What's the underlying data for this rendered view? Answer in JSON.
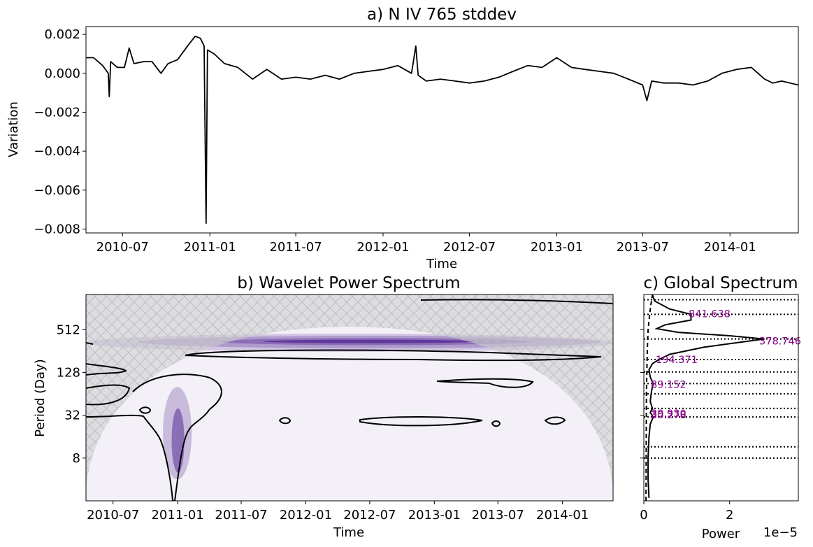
{
  "chart_data": [
    {
      "panel": "a",
      "type": "line",
      "title": "a) N IV 765 stddev",
      "xlabel": "Time",
      "ylabel": "Variation",
      "x_range": [
        "2010-04-15",
        "2014-05-25"
      ],
      "ylim": [
        -0.0082,
        0.0024
      ],
      "xticks": [
        "2010-07",
        "2011-01",
        "2011-07",
        "2012-01",
        "2012-07",
        "2013-01",
        "2013-07",
        "2014-01"
      ],
      "yticks": [
        {
          "value": 0.002,
          "label": "0.002"
        },
        {
          "value": 0.0,
          "label": "0.000"
        },
        {
          "value": -0.002,
          "label": "−0.002"
        },
        {
          "value": -0.004,
          "label": "−0.004"
        },
        {
          "value": -0.006,
          "label": "−0.006"
        },
        {
          "value": -0.008,
          "label": "−0.008"
        }
      ],
      "series": [
        {
          "color": "#000000",
          "points": [
            [
              "2010-04-15",
              0.0008
            ],
            [
              "2010-05-01",
              0.0008
            ],
            [
              "2010-05-20",
              0.0004
            ],
            [
              "2010-06-01",
              0.0
            ],
            [
              "2010-06-03",
              -0.0012
            ],
            [
              "2010-06-06",
              0.0006
            ],
            [
              "2010-06-20",
              0.0003
            ],
            [
              "2010-07-05",
              0.0003
            ],
            [
              "2010-07-15",
              0.0013
            ],
            [
              "2010-07-25",
              0.0005
            ],
            [
              "2010-08-15",
              0.0006
            ],
            [
              "2010-09-01",
              0.0006
            ],
            [
              "2010-09-20",
              0.0
            ],
            [
              "2010-10-05",
              0.0005
            ],
            [
              "2010-10-25",
              0.0007
            ],
            [
              "2010-11-15",
              0.0014
            ],
            [
              "2010-12-01",
              0.0019
            ],
            [
              "2010-12-12",
              0.0018
            ],
            [
              "2010-12-20",
              0.0014
            ],
            [
              "2010-12-24",
              -0.0077
            ],
            [
              "2010-12-27",
              0.0012
            ],
            [
              "2011-01-10",
              0.001
            ],
            [
              "2011-02-01",
              0.0005
            ],
            [
              "2011-03-01",
              0.0003
            ],
            [
              "2011-04-01",
              -0.0003
            ],
            [
              "2011-05-01",
              0.0002
            ],
            [
              "2011-06-01",
              -0.0003
            ],
            [
              "2011-07-01",
              -0.0002
            ],
            [
              "2011-08-01",
              -0.0003
            ],
            [
              "2011-09-01",
              -0.0001
            ],
            [
              "2011-10-01",
              -0.0003
            ],
            [
              "2011-11-01",
              0.0
            ],
            [
              "2011-12-01",
              0.0001
            ],
            [
              "2012-01-01",
              0.0002
            ],
            [
              "2012-02-01",
              0.0004
            ],
            [
              "2012-03-01",
              0.0
            ],
            [
              "2012-03-10",
              0.0014
            ],
            [
              "2012-03-15",
              -0.0001
            ],
            [
              "2012-04-01",
              -0.0004
            ],
            [
              "2012-05-01",
              -0.0003
            ],
            [
              "2012-06-01",
              -0.0004
            ],
            [
              "2012-07-01",
              -0.0005
            ],
            [
              "2012-08-01",
              -0.0004
            ],
            [
              "2012-09-01",
              -0.0002
            ],
            [
              "2012-10-01",
              0.0001
            ],
            [
              "2012-11-01",
              0.0004
            ],
            [
              "2012-12-01",
              0.0003
            ],
            [
              "2013-01-01",
              0.0008
            ],
            [
              "2013-02-01",
              0.0003
            ],
            [
              "2013-03-01",
              0.0002
            ],
            [
              "2013-04-01",
              0.0001
            ],
            [
              "2013-05-01",
              0.0
            ],
            [
              "2013-06-01",
              -0.0003
            ],
            [
              "2013-07-01",
              -0.0006
            ],
            [
              "2013-07-10",
              -0.0014
            ],
            [
              "2013-07-20",
              -0.0004
            ],
            [
              "2013-08-15",
              -0.0005
            ],
            [
              "2013-09-15",
              -0.0005
            ],
            [
              "2013-10-15",
              -0.0006
            ],
            [
              "2013-11-15",
              -0.0004
            ],
            [
              "2013-12-15",
              0.0
            ],
            [
              "2014-01-15",
              0.0002
            ],
            [
              "2014-02-15",
              0.0003
            ],
            [
              "2014-03-15",
              -0.0003
            ],
            [
              "2014-04-01",
              -0.0005
            ],
            [
              "2014-04-20",
              -0.0004
            ],
            [
              "2014-05-25",
              -0.0006
            ]
          ]
        }
      ]
    },
    {
      "panel": "b",
      "type": "heatmap",
      "title": "b) Wavelet Power Spectrum",
      "xlabel": "Time",
      "ylabel": "Period (Day)",
      "x_range": [
        "2010-04-15",
        "2014-05-25"
      ],
      "y_scale": "log2",
      "ylim": [
        2,
        1600
      ],
      "xticks": [
        "2010-07",
        "2011-01",
        "2011-07",
        "2012-01",
        "2012-07",
        "2013-01",
        "2013-07",
        "2014-01"
      ],
      "yticks": [
        {
          "value": 8,
          "label": "8"
        },
        {
          "value": 32,
          "label": "32"
        },
        {
          "value": 128,
          "label": "128"
        },
        {
          "value": 512,
          "label": "512"
        }
      ],
      "colormap": "Purples",
      "power_regions": [
        {
          "x0": "2010-04-15",
          "x1": "2014-05-25",
          "period_low": 250,
          "period_high": 450,
          "level": 0.2
        },
        {
          "x0": "2010-09-15",
          "x1": "2014-04-15",
          "period_low": 280,
          "period_high": 420,
          "level": 0.4
        },
        {
          "x0": "2011-05-01",
          "x1": "2013-10-01",
          "period_low": 310,
          "period_high": 390,
          "level": 0.6
        },
        {
          "x0": "2011-09-01",
          "x1": "2013-05-01",
          "period_low": 330,
          "period_high": 370,
          "level": 0.85
        },
        {
          "x0": "2010-11-20",
          "x1": "2011-02-10",
          "period_low": 4,
          "period_high": 80,
          "level": 0.25
        },
        {
          "x0": "2010-12-15",
          "x1": "2011-01-20",
          "period_low": 5,
          "period_high": 40,
          "level": 0.6
        }
      ]
    },
    {
      "panel": "c",
      "type": "line",
      "title": "c) Global Spectrum",
      "xlabel": "Power",
      "x_scale_label": "1e−5",
      "xlim": [
        0,
        3.6
      ],
      "xticks": [
        {
          "value": 0,
          "label": "0"
        },
        {
          "value": 2,
          "label": "2"
        }
      ],
      "series": [
        {
          "style": "solid",
          "points": [
            [
              0.12,
              2.2
            ],
            [
              0.1,
              4
            ],
            [
              0.1,
              8
            ],
            [
              0.12,
              16
            ],
            [
              0.15,
              24
            ],
            [
              0.22,
              30.3
            ],
            [
              0.15,
              35
            ],
            [
              0.2,
              39.9
            ],
            [
              0.15,
              50
            ],
            [
              0.18,
              70
            ],
            [
              0.22,
              89.2
            ],
            [
              0.15,
              110
            ],
            [
              0.12,
              140
            ],
            [
              0.2,
              170
            ],
            [
              0.35,
              194.4
            ],
            [
              0.6,
              230
            ],
            [
              1.4,
              290
            ],
            [
              2.8,
              378.7
            ],
            [
              2.0,
              420
            ],
            [
              0.8,
              470
            ],
            [
              0.3,
              530
            ],
            [
              0.5,
              600
            ],
            [
              1.1,
              700
            ],
            [
              1.1,
              841.6
            ],
            [
              0.6,
              1000
            ],
            [
              0.25,
              1300
            ],
            [
              0.2,
              1600
            ]
          ]
        },
        {
          "style": "dashed",
          "points": [
            [
              0.05,
              2
            ],
            [
              0.06,
              64
            ],
            [
              0.08,
              256
            ],
            [
              0.1,
              512
            ],
            [
              0.15,
              1000
            ],
            [
              0.2,
              1600
            ]
          ]
        }
      ],
      "peaks": [
        {
          "period": 841.638,
          "label": "841.638"
        },
        {
          "period": 378.746,
          "label": "378.746"
        },
        {
          "period": 194.371,
          "label": "194.371"
        },
        {
          "period": 89.152,
          "label": "89.152"
        },
        {
          "period": 39.93,
          "label": "39.930"
        },
        {
          "period": 30.278,
          "label": "30.278"
        }
      ]
    }
  ]
}
